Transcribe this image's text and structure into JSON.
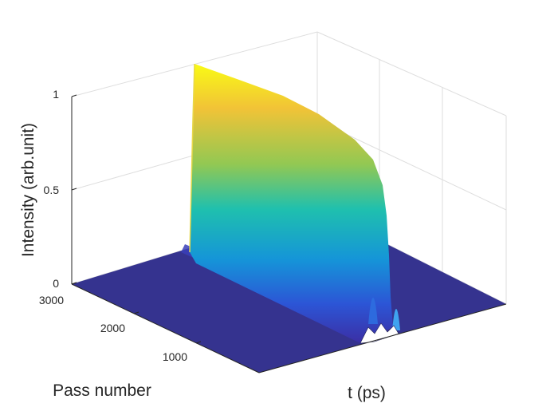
{
  "chart_data": {
    "type": "surface",
    "title": "",
    "xlabel": "t (ps)",
    "ylabel": "Pass number",
    "zlabel": "Intensity (arb.unit)",
    "zlim": [
      0,
      1
    ],
    "ylim": [
      0,
      3000
    ],
    "z_ticks": [
      "0",
      "0.5",
      "1"
    ],
    "y_ticks": [
      "1000",
      "2000",
      "3000"
    ],
    "x_ticks": [],
    "grid": true,
    "colormap": "parula",
    "colormap_stops": [
      "#3e26a8",
      "#4771f0",
      "#16a6e1",
      "#1bbfb0",
      "#7bcd5e",
      "#e3ba32",
      "#f9fb15"
    ],
    "surface_color": "#35338f",
    "series": [
      {
        "pass": [
          0,
          3000
        ],
        "peak_intensity": [
          0.05,
          0.05
        ]
      },
      {
        "pass": [
          0,
          1000,
          2000,
          3000
        ],
        "peak_intensity": [
          0.02,
          1.0,
          1.0,
          1.0
        ]
      }
    ]
  }
}
